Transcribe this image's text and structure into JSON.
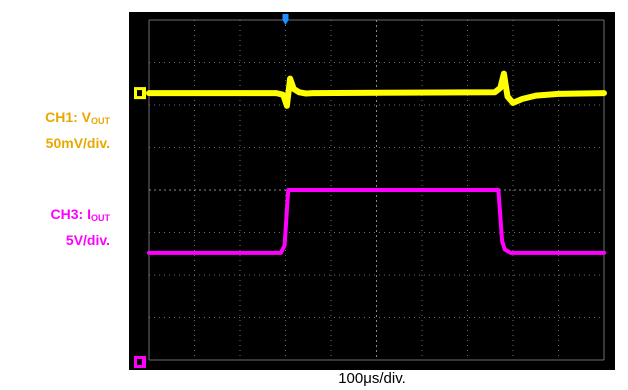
{
  "colors": {
    "screen": "#000000",
    "grid": "#8a8a8a",
    "ch1_trace": "#ffff00",
    "ch3_trace": "#ff00ff",
    "ch1_label": "#e8a800",
    "ch3_label": "#ff00ff",
    "trigger_marker": "#1e90ff"
  },
  "labels": {
    "ch1_prefix": "CH1: V",
    "ch1_sub": "OUT",
    "ch1_scale": "50mV/div.",
    "ch3_prefix": "CH3: I",
    "ch3_sub": "OUT",
    "ch3_scale": "5V/div.",
    "timebase": "100μs/div."
  },
  "chart_data": {
    "type": "line",
    "x_unit": "μs",
    "xlim": [
      0,
      1000
    ],
    "ylim": [
      -4,
      4
    ],
    "grid": true,
    "trigger_x": 0,
    "series": [
      {
        "name": "CH1: VOUT",
        "color": "#ffff00",
        "points": [
          [
            0,
            2.28
          ],
          [
            280,
            2.28
          ],
          [
            295,
            2.24
          ],
          [
            303,
            1.98
          ],
          [
            310,
            2.62
          ],
          [
            318,
            2.38
          ],
          [
            330,
            2.3
          ],
          [
            345,
            2.27
          ],
          [
            360,
            2.28
          ],
          [
            760,
            2.3
          ],
          [
            772,
            2.4
          ],
          [
            780,
            2.74
          ],
          [
            788,
            2.2
          ],
          [
            800,
            2.05
          ],
          [
            820,
            2.14
          ],
          [
            850,
            2.22
          ],
          [
            900,
            2.26
          ],
          [
            1000,
            2.28
          ]
        ]
      },
      {
        "name": "CH3: IOUT",
        "color": "#ff00ff",
        "points": [
          [
            0,
            -1.48
          ],
          [
            290,
            -1.48
          ],
          [
            298,
            -1.3
          ],
          [
            306,
            0.0
          ],
          [
            314,
            0.0
          ],
          [
            768,
            0.0
          ],
          [
            776,
            -1.2
          ],
          [
            782,
            -1.4
          ],
          [
            795,
            -1.48
          ],
          [
            1000,
            -1.48
          ]
        ]
      }
    ]
  }
}
